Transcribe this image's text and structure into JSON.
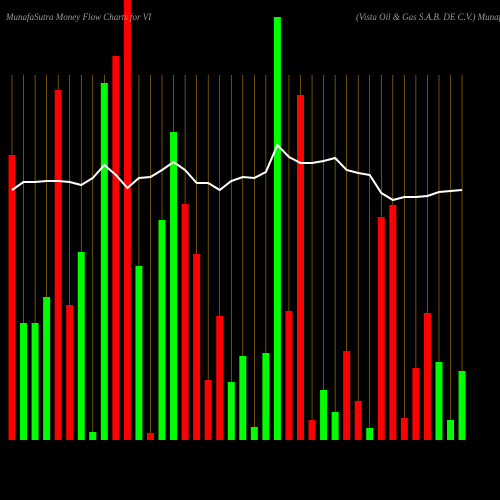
{
  "chart_data": {
    "type": "bar",
    "title": "MunafaSutra  Money Flow  Charts for VI",
    "subtitle": "(Vista  Oil & Gas S.A.B. DE C.V.) MunafaSutra",
    "categories": [
      null,
      null,
      null,
      null,
      null,
      null,
      null,
      null,
      null,
      null,
      null,
      null,
      null,
      null,
      null,
      null,
      null,
      null,
      null,
      null,
      null,
      null,
      null,
      null,
      null,
      null,
      null,
      null,
      null,
      null,
      null,
      null,
      null,
      null,
      null,
      null,
      null,
      null,
      null,
      null
    ],
    "values": [
      285,
      117,
      117,
      143,
      350,
      135,
      188,
      8,
      357,
      384,
      440,
      174,
      7,
      220,
      308,
      236,
      186,
      60,
      124,
      58,
      84,
      13,
      87,
      423,
      129,
      345,
      20,
      50,
      28,
      89,
      39,
      12,
      223,
      235,
      22,
      72,
      127,
      78,
      20,
      69
    ],
    "colors": [
      "#ff0000",
      "#00ff00",
      "#00ff00",
      "#00ff00",
      "#ff0000",
      "#ff0000",
      "#00ff00",
      "#00ff00",
      "#00ff00",
      "#ff0000",
      "#ff0000",
      "#00ff00",
      "#ff0000",
      "#00ff00",
      "#00ff00",
      "#ff0000",
      "#ff0000",
      "#ff0000",
      "#ff0000",
      "#00ff00",
      "#00ff00",
      "#00ff00",
      "#00ff00",
      "#00ff00",
      "#ff0000",
      "#ff0000",
      "#ff0000",
      "#00ff00",
      "#00ff00",
      "#ff0000",
      "#ff0000",
      "#00ff00",
      "#ff0000",
      "#ff0000",
      "#ff0000",
      "#ff0000",
      "#ff0000",
      "#00ff00",
      "#00ff00",
      "#00ff00"
    ],
    "line": {
      "color": "#ffffff",
      "values": [
        250,
        258,
        258,
        259,
        259,
        258,
        255,
        262,
        275,
        265,
        252,
        262,
        263,
        270,
        278,
        270,
        257,
        257,
        250,
        259,
        263,
        262,
        268,
        295,
        283,
        277,
        277,
        279,
        282,
        270,
        267,
        265,
        247,
        240,
        243,
        243,
        244,
        248,
        249,
        250
      ]
    },
    "ylim": [
      0,
      440
    ],
    "grid": true
  }
}
